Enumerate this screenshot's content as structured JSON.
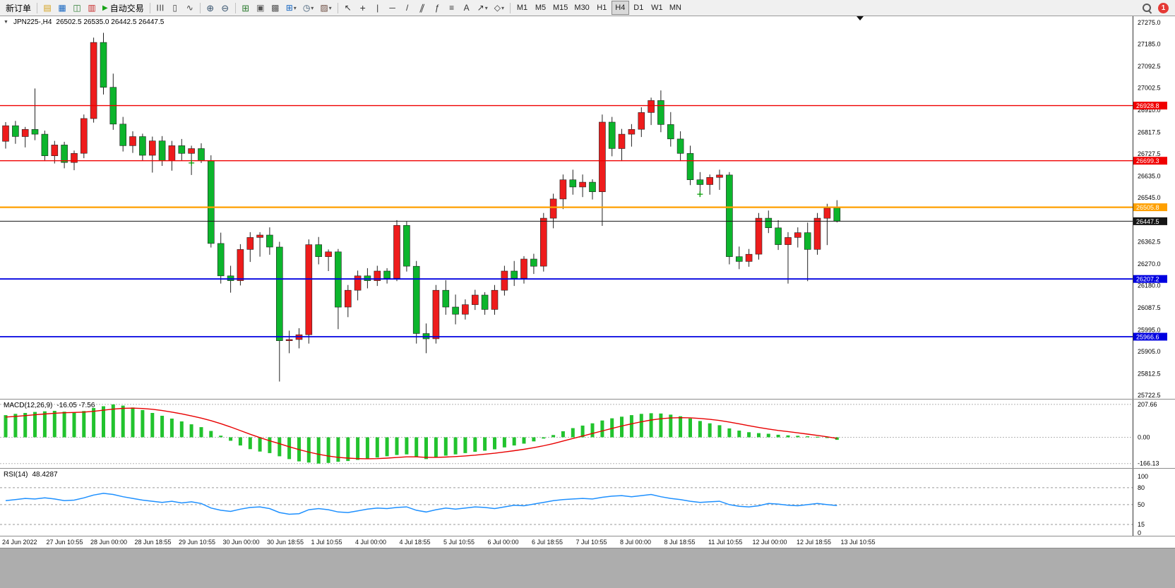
{
  "toolbar": {
    "new_order_label": "新订单",
    "algo_trading_label": "自动交易",
    "timeframes": [
      "M1",
      "M5",
      "M15",
      "M30",
      "H1",
      "H4",
      "D1",
      "W1",
      "MN"
    ],
    "active_timeframe": "H4",
    "notification_count": "1",
    "caret": "▾",
    "icon_glyphs": {
      "collapse": "▼",
      "market_watch": "▤",
      "data_window": "▦",
      "navigator": "◫",
      "terminal": "▥",
      "algo_play": "▶",
      "bars_type": "☰",
      "candles_type": "▯",
      "line_type": "∿",
      "zoom_in": "⊕",
      "zoom_out": "⊖",
      "tile_windows": "⊞",
      "cascade_windows": "▣",
      "arrange_windows": "▩",
      "new_chart": "⊞",
      "period": "◷",
      "template": "▨"
    },
    "tools": {
      "cursor": "↖",
      "crosshair": "+",
      "vline": "|",
      "hline": "─",
      "trendline": "/",
      "channel": "∥",
      "fibonacci": "ƒ",
      "levels": "≡",
      "text": "A",
      "arrow": "↗",
      "shapes": "◇"
    }
  },
  "chart": {
    "symbol_label": "JPN225-,H4",
    "ohlc_text": "26502.5 26535.0 26442.5 26447.5",
    "y_ticks": [
      "27275.0",
      "27185.0",
      "27092.5",
      "27002.5",
      "26910.0",
      "26817.5",
      "26727.5",
      "26635.0",
      "26545.0",
      "26362.5",
      "26270.0",
      "26180.0",
      "26087.5",
      "25995.0",
      "25905.0",
      "25812.5",
      "25722.5"
    ],
    "x_labels": [
      "24 Jun 2022",
      "27 Jun 10:55",
      "28 Jun 00:00",
      "28 Jun 18:55",
      "29 Jun 10:55",
      "30 Jun 00:00",
      "30 Jun 18:55",
      "1 Jul 10:55",
      "4 Jul 00:00",
      "4 Jul 18:55",
      "5 Jul 10:55",
      "6 Jul 00:00",
      "6 Jul 18:55",
      "7 Jul 10:55",
      "8 Jul 00:00",
      "8 Jul 18:55",
      "11 Jul 10:55",
      "12 Jul 00:00",
      "12 Jul 18:55",
      "13 Jul 10:55"
    ],
    "levels": [
      {
        "label": "26928.8",
        "price": 26928.8,
        "color": "#f00000",
        "width": 1.4
      },
      {
        "label": "26699.3",
        "price": 26699.3,
        "color": "#f00000",
        "width": 1.4
      },
      {
        "label": "26505.8",
        "price": 26505.8,
        "color": "#ffa000",
        "width": 2.2
      },
      {
        "label": "26447.5",
        "price": 26447.5,
        "color": "#151515",
        "width": 1
      },
      {
        "label": "26207.2",
        "price": 26207.2,
        "color": "#0000e0",
        "width": 1.8
      },
      {
        "label": "25966.6",
        "price": 25966.6,
        "color": "#0000e0",
        "width": 1.8
      }
    ],
    "cross_markers": [
      {
        "i": 19,
        "price": 26690
      },
      {
        "i": 71,
        "price": 26560
      }
    ]
  },
  "macd_panel": {
    "label": "MACD(12,26,9)",
    "values": "-16.05 -7.56",
    "ticks": [
      {
        "label": "207.66",
        "v": 207.66
      },
      {
        "label": "0.00",
        "v": 0
      },
      {
        "label": "-166.13",
        "v": -166.13
      }
    ],
    "dash_levels": [
      207.66,
      0,
      -166.13
    ]
  },
  "rsi_panel": {
    "label": "RSI(14)",
    "values": "48.4287",
    "ticks": [
      {
        "label": "100",
        "v": 100
      },
      {
        "label": "80",
        "v": 80
      },
      {
        "label": "50",
        "v": 50
      },
      {
        "label": "15",
        "v": 15
      },
      {
        "label": "0",
        "v": 0
      }
    ],
    "dash_levels": [
      80,
      50,
      15
    ]
  },
  "colors": {
    "up": "#ee1c1c",
    "down": "#0cb52c",
    "macd_bar": "#22c32e",
    "signal": "#e80000",
    "rsi": "#1e90ff"
  },
  "chart_data": {
    "type": "candlestick",
    "symbol": "JPN225-",
    "period": "H4",
    "price_range": [
      25708,
      27301
    ],
    "candles": [
      [
        26780,
        26860,
        26750,
        26845
      ],
      [
        26845,
        26865,
        26770,
        26800
      ],
      [
        26800,
        26840,
        26755,
        26830
      ],
      [
        26830,
        27000,
        26785,
        26810
      ],
      [
        26810,
        26825,
        26698,
        26720
      ],
      [
        26720,
        26782,
        26688,
        26765
      ],
      [
        26765,
        26778,
        26668,
        26692
      ],
      [
        26692,
        26742,
        26660,
        26730
      ],
      [
        26730,
        26892,
        26710,
        26875
      ],
      [
        26875,
        27212,
        26858,
        27192
      ],
      [
        27192,
        27232,
        26975,
        27005
      ],
      [
        27005,
        27062,
        26828,
        26852
      ],
      [
        26852,
        26882,
        26738,
        26762
      ],
      [
        26762,
        26822,
        26732,
        26800
      ],
      [
        26800,
        26812,
        26700,
        26722
      ],
      [
        26722,
        26800,
        26650,
        26782
      ],
      [
        26782,
        26802,
        26678,
        26700
      ],
      [
        26700,
        26782,
        26658,
        26762
      ],
      [
        26762,
        26790,
        26700,
        26730
      ],
      [
        26730,
        26762,
        26640,
        26750
      ],
      [
        26750,
        26772,
        26690,
        26700
      ],
      [
        26700,
        26722,
        26338,
        26355
      ],
      [
        26355,
        26400,
        26188,
        26220
      ],
      [
        26220,
        26262,
        26150,
        26200
      ],
      [
        26200,
        26352,
        26180,
        26330
      ],
      [
        26330,
        26402,
        26278,
        26380
      ],
      [
        26380,
        26402,
        26300,
        26390
      ],
      [
        26390,
        26422,
        26308,
        26340
      ],
      [
        26340,
        26362,
        25780,
        25950
      ],
      [
        25950,
        25992,
        25898,
        25955
      ],
      [
        25955,
        26002,
        25918,
        25975
      ],
      [
        25975,
        26372,
        25938,
        26350
      ],
      [
        26350,
        26382,
        26268,
        26300
      ],
      [
        26300,
        26330,
        26240,
        26320
      ],
      [
        26320,
        26332,
        25998,
        26090
      ],
      [
        26090,
        26182,
        26048,
        26160
      ],
      [
        26160,
        26242,
        26118,
        26220
      ],
      [
        26220,
        26252,
        26168,
        26200
      ],
      [
        26200,
        26262,
        26178,
        26240
      ],
      [
        26240,
        26252,
        26188,
        26210
      ],
      [
        26210,
        26452,
        26198,
        26430
      ],
      [
        26430,
        26446,
        26238,
        26260
      ],
      [
        26260,
        26282,
        25938,
        25980
      ],
      [
        25980,
        26022,
        25898,
        25958
      ],
      [
        25958,
        26182,
        25938,
        26160
      ],
      [
        26160,
        26202,
        26058,
        26090
      ],
      [
        26090,
        26142,
        26018,
        26060
      ],
      [
        26060,
        26122,
        26038,
        26100
      ],
      [
        26100,
        26162,
        26078,
        26140
      ],
      [
        26140,
        26152,
        26058,
        26080
      ],
      [
        26080,
        26182,
        26058,
        26160
      ],
      [
        26160,
        26262,
        26138,
        26240
      ],
      [
        26240,
        26282,
        26178,
        26210
      ],
      [
        26210,
        26302,
        26188,
        26290
      ],
      [
        26290,
        26312,
        26228,
        26260
      ],
      [
        26260,
        26482,
        26238,
        26460
      ],
      [
        26460,
        26562,
        26418,
        26540
      ],
      [
        26540,
        26642,
        26498,
        26620
      ],
      [
        26620,
        26662,
        26558,
        26590
      ],
      [
        26590,
        26642,
        26548,
        26610
      ],
      [
        26610,
        26622,
        26538,
        26570
      ],
      [
        26570,
        26892,
        26428,
        26860
      ],
      [
        26860,
        26882,
        26718,
        26750
      ],
      [
        26750,
        26832,
        26698,
        26810
      ],
      [
        26810,
        26852,
        26758,
        26830
      ],
      [
        26830,
        26922,
        26798,
        26900
      ],
      [
        26900,
        26962,
        26848,
        26950
      ],
      [
        26950,
        26992,
        26818,
        26850
      ],
      [
        26850,
        26902,
        26758,
        26790
      ],
      [
        26790,
        26822,
        26698,
        26730
      ],
      [
        26730,
        26762,
        26598,
        26620
      ],
      [
        26620,
        26652,
        26558,
        26600
      ],
      [
        26600,
        26642,
        26558,
        26630
      ],
      [
        26630,
        26662,
        26578,
        26640
      ],
      [
        26640,
        26652,
        26268,
        26300
      ],
      [
        26300,
        26342,
        26248,
        26280
      ],
      [
        26280,
        26332,
        26258,
        26310
      ],
      [
        26310,
        26482,
        26288,
        26460
      ],
      [
        26460,
        26492,
        26398,
        26420
      ],
      [
        26420,
        26452,
        26328,
        26350
      ],
      [
        26350,
        26402,
        26188,
        26380
      ],
      [
        26380,
        26422,
        26338,
        26400
      ],
      [
        26400,
        26442,
        26198,
        26330
      ],
      [
        26330,
        26482,
        26308,
        26460
      ],
      [
        26460,
        26520,
        26348,
        26502
      ],
      [
        26502.5,
        26535,
        26442.5,
        26447.5
      ]
    ],
    "macd": [
      140,
      148,
      154,
      160,
      164,
      167,
      162,
      158,
      166,
      185,
      196,
      207.66,
      200,
      188,
      172,
      154,
      136,
      118,
      100,
      82,
      64,
      40,
      10,
      -22,
      -52,
      -75,
      -90,
      -100,
      -120,
      -138,
      -152,
      -160,
      -166.13,
      -162,
      -155,
      -150,
      -143,
      -136,
      -128,
      -120,
      -112,
      -108,
      -122,
      -138,
      -126,
      -116,
      -108,
      -100,
      -92,
      -85,
      -76,
      -64,
      -52,
      -40,
      -26,
      -8,
      14,
      38,
      58,
      74,
      88,
      106,
      120,
      130,
      140,
      148,
      152,
      150,
      143,
      133,
      119,
      103,
      88,
      76,
      56,
      42,
      32,
      26,
      22,
      16,
      12,
      9,
      6,
      3,
      -4,
      -16.05
    ],
    "macd_signal": [
      128,
      132,
      137,
      142,
      147,
      152,
      155,
      157,
      159,
      164,
      171,
      178,
      183,
      184,
      182,
      177,
      169,
      159,
      148,
      135,
      121,
      105,
      86,
      65,
      42,
      19,
      -2,
      -22,
      -41,
      -60,
      -78,
      -94,
      -108,
      -119,
      -127,
      -132,
      -135,
      -136,
      -135,
      -132,
      -128,
      -124,
      -124,
      -127,
      -127,
      -125,
      -122,
      -118,
      -113,
      -107,
      -101,
      -93,
      -85,
      -76,
      -66,
      -54,
      -40,
      -24,
      -8,
      8,
      24,
      40,
      56,
      71,
      85,
      98,
      109,
      117,
      122,
      124,
      123,
      119,
      113,
      106,
      96,
      85,
      73,
      62,
      52,
      43,
      36,
      28,
      20,
      12,
      3,
      -7.56
    ],
    "rsi": [
      57,
      59,
      61,
      60,
      62,
      60,
      57,
      58,
      62,
      67,
      70,
      68,
      64,
      61,
      58,
      56,
      54,
      56,
      53,
      55,
      52,
      44,
      40,
      38,
      42,
      45,
      46,
      43,
      36,
      33,
      34,
      41,
      43,
      41,
      37,
      36,
      39,
      42,
      44,
      43,
      45,
      46,
      40,
      37,
      41,
      44,
      42,
      44,
      46,
      45,
      43,
      46,
      49,
      48,
      51,
      54,
      57,
      59,
      60,
      61,
      60,
      63,
      65,
      66,
      64,
      66,
      68,
      64,
      61,
      59,
      56,
      54,
      55,
      56,
      50,
      47,
      46,
      48,
      52,
      51,
      49,
      48,
      50,
      52,
      50,
      48.43
    ]
  }
}
